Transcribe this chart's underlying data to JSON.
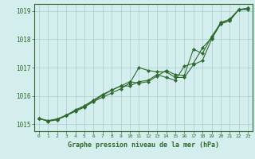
{
  "title": "Graphe pression niveau de la mer (hPa)",
  "x_hours": [
    0,
    1,
    2,
    3,
    4,
    5,
    6,
    7,
    8,
    9,
    10,
    11,
    12,
    13,
    14,
    15,
    16,
    17,
    18,
    19,
    20,
    21,
    22,
    23
  ],
  "line1": [
    1015.2,
    1015.1,
    1015.15,
    1015.3,
    1015.45,
    1015.6,
    1015.8,
    1015.95,
    1016.1,
    1016.25,
    1016.45,
    1017.0,
    1016.9,
    1016.85,
    1016.85,
    1016.65,
    1016.65,
    1017.1,
    1017.25,
    1018.0,
    1018.55,
    1018.65,
    1019.05,
    1019.05
  ],
  "line2": [
    1015.2,
    1015.12,
    1015.18,
    1015.3,
    1015.5,
    1015.65,
    1015.85,
    1016.05,
    1016.2,
    1016.35,
    1016.35,
    1016.5,
    1016.55,
    1016.75,
    1016.65,
    1016.55,
    1017.05,
    1017.15,
    1017.7,
    1018.05,
    1018.6,
    1018.7,
    1019.05,
    1019.1
  ],
  "line3": [
    1015.2,
    1015.12,
    1015.18,
    1015.32,
    1015.48,
    1015.62,
    1015.82,
    1016.02,
    1016.2,
    1016.35,
    1016.5,
    1016.45,
    1016.5,
    1016.7,
    1016.9,
    1016.75,
    1016.72,
    1017.65,
    1017.5,
    1018.1,
    1018.55,
    1018.72,
    1019.05,
    1019.1
  ],
  "line_color": "#2d6a2d",
  "marker_color": "#2d6a2d",
  "bg_color": "#d4eded",
  "grid_color": "#a8cccc",
  "axis_color": "#2d6a2d",
  "tick_color": "#2d6a2d",
  "title_color": "#2d6a2d",
  "ylim": [
    1014.75,
    1019.25
  ],
  "yticks": [
    1015,
    1016,
    1017,
    1018,
    1019
  ],
  "xlim": [
    -0.5,
    23.5
  ],
  "xticks": [
    0,
    1,
    2,
    3,
    4,
    5,
    6,
    7,
    8,
    9,
    10,
    11,
    12,
    13,
    14,
    15,
    16,
    17,
    18,
    19,
    20,
    21,
    22,
    23
  ]
}
